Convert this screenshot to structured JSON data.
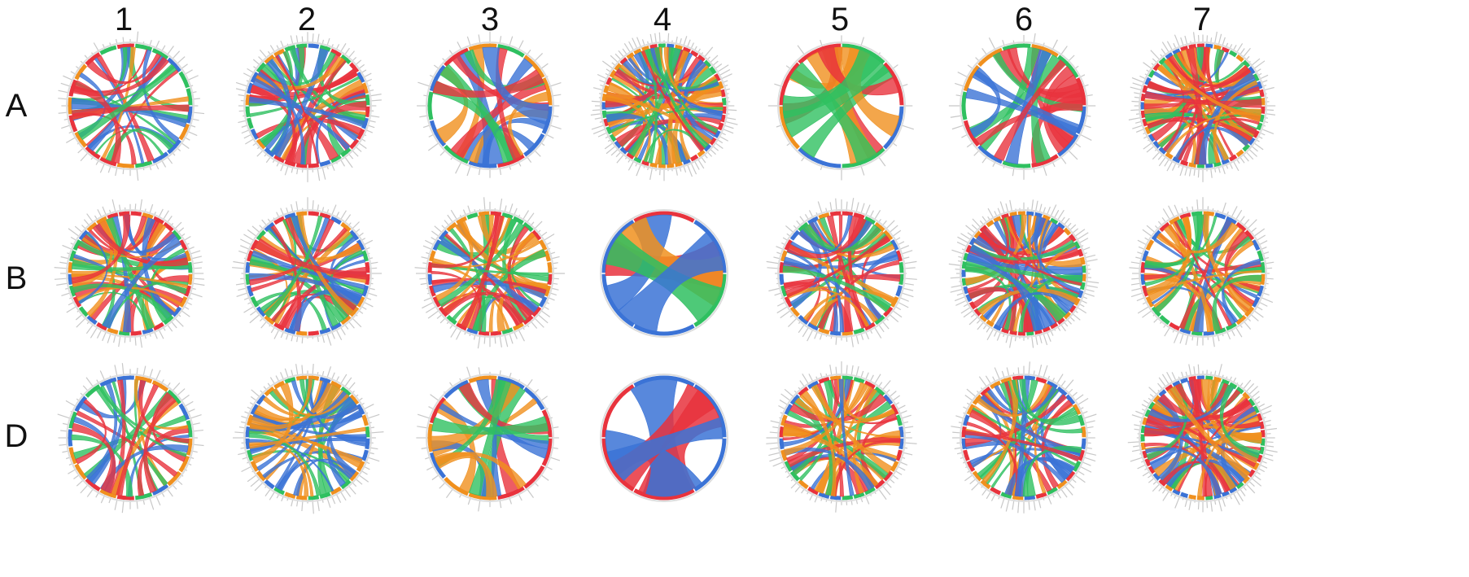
{
  "figure": {
    "columns": [
      "1",
      "2",
      "3",
      "4",
      "5",
      "6",
      "7"
    ],
    "rows": [
      "A",
      "B",
      "D"
    ]
  },
  "palette": {
    "blue": "#3b73d6",
    "orange": "#f0901e",
    "red": "#e8333d",
    "green": "#2fc060",
    "gray": "#cccccc",
    "dark_red": "#b03a3a"
  },
  "panels": [
    {
      "row": "A",
      "col": "1",
      "density": "medium",
      "colors": [
        "blue",
        "orange",
        "red",
        "green"
      ]
    },
    {
      "row": "A",
      "col": "2",
      "density": "high",
      "colors": [
        "green",
        "blue",
        "orange",
        "red"
      ]
    },
    {
      "row": "A",
      "col": "3",
      "density": "low",
      "colors": [
        "blue",
        "green",
        "orange",
        "red"
      ]
    },
    {
      "row": "A",
      "col": "4",
      "density": "very-high",
      "colors": [
        "blue",
        "green",
        "orange",
        "red"
      ]
    },
    {
      "row": "A",
      "col": "5",
      "density": "very-low",
      "colors": [
        "blue",
        "green",
        "red",
        "orange"
      ]
    },
    {
      "row": "A",
      "col": "6",
      "density": "low",
      "colors": [
        "blue",
        "orange",
        "green",
        "red"
      ]
    },
    {
      "row": "A",
      "col": "7",
      "density": "very-high",
      "colors": [
        "blue",
        "green",
        "orange",
        "red"
      ]
    },
    {
      "row": "B",
      "col": "1",
      "density": "high",
      "colors": [
        "blue",
        "green",
        "orange",
        "red"
      ]
    },
    {
      "row": "B",
      "col": "2",
      "density": "high",
      "colors": [
        "green",
        "blue",
        "red",
        "orange"
      ]
    },
    {
      "row": "B",
      "col": "3",
      "density": "high",
      "colors": [
        "blue",
        "red",
        "green",
        "orange"
      ]
    },
    {
      "row": "B",
      "col": "4",
      "density": "minimal",
      "colors": [
        "red",
        "orange",
        "blue",
        "green"
      ]
    },
    {
      "row": "B",
      "col": "5",
      "density": "high",
      "colors": [
        "blue",
        "green",
        "orange",
        "red"
      ]
    },
    {
      "row": "B",
      "col": "6",
      "density": "very-high",
      "colors": [
        "blue",
        "green",
        "red",
        "orange"
      ]
    },
    {
      "row": "B",
      "col": "7",
      "density": "high",
      "colors": [
        "blue",
        "orange",
        "red",
        "green"
      ]
    },
    {
      "row": "D",
      "col": "1",
      "density": "medium",
      "colors": [
        "blue",
        "green",
        "orange",
        "red"
      ]
    },
    {
      "row": "D",
      "col": "2",
      "density": "high",
      "colors": [
        "blue",
        "green",
        "orange"
      ]
    },
    {
      "row": "D",
      "col": "3",
      "density": "low",
      "colors": [
        "blue",
        "green",
        "red",
        "orange"
      ]
    },
    {
      "row": "D",
      "col": "4",
      "density": "minimal",
      "colors": [
        "blue",
        "red"
      ]
    },
    {
      "row": "D",
      "col": "5",
      "density": "high",
      "colors": [
        "blue",
        "green",
        "orange",
        "red"
      ]
    },
    {
      "row": "D",
      "col": "6",
      "density": "high",
      "colors": [
        "blue",
        "orange",
        "red",
        "green"
      ]
    },
    {
      "row": "D",
      "col": "7",
      "density": "very-high",
      "colors": [
        "blue",
        "green",
        "orange",
        "red"
      ]
    }
  ]
}
